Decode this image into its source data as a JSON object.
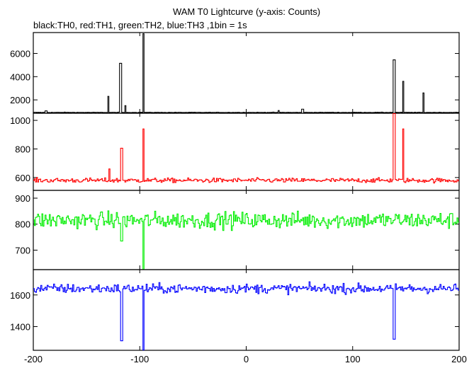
{
  "chart_data": {
    "type": "line",
    "title": "WAM T0 Lightcurve (y-axis: Counts)",
    "subtitle": "black:TH0, red:TH1, green:TH2, blue:TH3 ,1bin = 1s",
    "xlim": [
      -200,
      200
    ],
    "x_ticks": [
      -200,
      -100,
      0,
      100,
      200
    ],
    "bin_seconds": 1,
    "panels": [
      {
        "series": "TH0",
        "color": "#000000",
        "ylim": [
          850,
          7800
        ],
        "y_ticks": [
          2000,
          4000,
          6000
        ],
        "baseline": 920,
        "noise": 20,
        "features": [
          {
            "x": -189,
            "y": 1050,
            "w": 2
          },
          {
            "x": -130,
            "y": 2300,
            "w": 1
          },
          {
            "x": -119,
            "y": 5150,
            "w": 2
          },
          {
            "x": -114,
            "y": 1500,
            "w": 1
          },
          {
            "x": -97,
            "y": 7700,
            "w": 1
          },
          {
            "x": 30,
            "y": 1080,
            "w": 1
          },
          {
            "x": 52,
            "y": 1200,
            "w": 2
          },
          {
            "x": 138,
            "y": 5450,
            "w": 2
          },
          {
            "x": 147,
            "y": 3600,
            "w": 1
          },
          {
            "x": 166,
            "y": 2600,
            "w": 1
          }
        ]
      },
      {
        "series": "TH1",
        "color": "#ff0000",
        "ylim": [
          510,
          1050
        ],
        "y_ticks": [
          600,
          800,
          1000
        ],
        "baseline": 580,
        "noise": 16,
        "features": [
          {
            "x": -129,
            "y": 660,
            "w": 1
          },
          {
            "x": -118,
            "y": 805,
            "w": 2
          },
          {
            "x": -97,
            "y": 940,
            "w": 1
          },
          {
            "x": 138,
            "y": 1060,
            "w": 2
          },
          {
            "x": 147,
            "y": 940,
            "w": 1
          }
        ]
      },
      {
        "series": "TH2",
        "color": "#00ee00",
        "ylim": [
          625,
          930
        ],
        "y_ticks": [
          700,
          800,
          900
        ],
        "baseline": 815,
        "noise": 32,
        "features": [
          {
            "x": -97,
            "y": 615,
            "w": 1
          },
          {
            "x": -118,
            "y": 735,
            "w": 2
          }
        ]
      },
      {
        "series": "TH3",
        "color": "#0000ff",
        "ylim": [
          1250,
          1760
        ],
        "y_ticks": [
          1400,
          1600
        ],
        "baseline": 1640,
        "noise": 30,
        "features": [
          {
            "x": -118,
            "y": 1310,
            "w": 2
          },
          {
            "x": -97,
            "y": 1240,
            "w": 1
          },
          {
            "x": 138,
            "y": 1320,
            "w": 2
          }
        ]
      }
    ]
  }
}
